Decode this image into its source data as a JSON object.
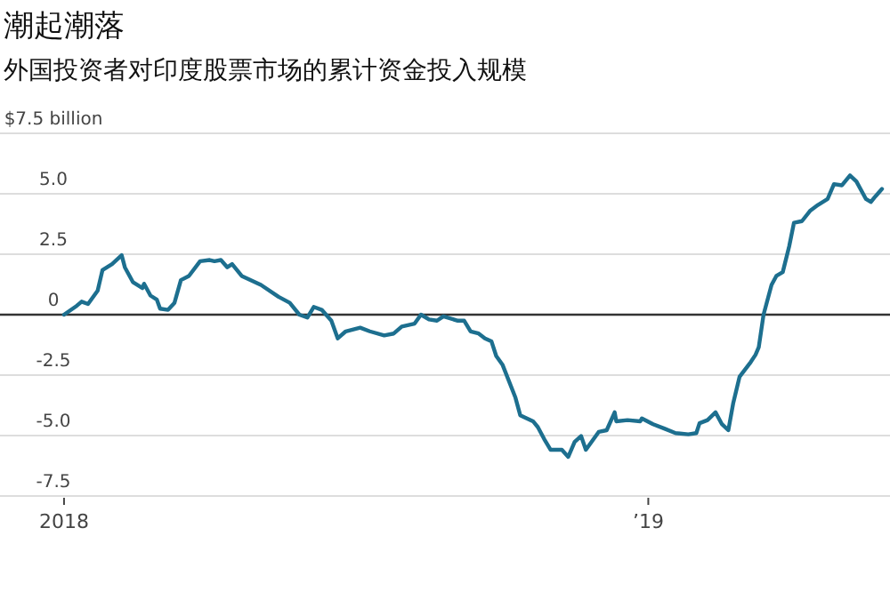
{
  "chart_data": {
    "type": "line",
    "title": "潮起潮落",
    "subtitle": "外国投资者对印度股票市场的累计资金投入规模",
    "x": [
      "2018-01-01",
      "2018-01-09",
      "2018-01-12",
      "2018-01-16",
      "2018-01-22",
      "2018-01-25",
      "2018-01-31",
      "2018-02-06",
      "2018-02-08",
      "2018-02-13",
      "2018-02-19",
      "2018-02-20",
      "2018-02-24",
      "2018-02-28",
      "2018-03-02",
      "2018-03-07",
      "2018-03-11",
      "2018-03-15",
      "2018-03-20",
      "2018-03-27",
      "2018-04-02",
      "2018-04-05",
      "2018-04-09",
      "2018-04-13",
      "2018-04-16",
      "2018-04-22",
      "2018-05-04",
      "2018-05-15",
      "2018-05-22",
      "2018-05-28",
      "2018-06-02",
      "2018-06-06",
      "2018-06-11",
      "2018-06-17",
      "2018-06-21",
      "2018-06-26",
      "2018-07-05",
      "2018-07-11",
      "2018-07-20",
      "2018-07-26",
      "2018-07-31",
      "2018-08-08",
      "2018-08-12",
      "2018-08-17",
      "2018-08-22",
      "2018-08-26",
      "2018-09-04",
      "2018-09-08",
      "2018-09-12",
      "2018-09-17",
      "2018-09-21",
      "2018-09-25",
      "2018-09-28",
      "2018-10-02",
      "2018-10-10",
      "2018-10-13",
      "2018-10-21",
      "2018-10-24",
      "2018-10-28",
      "2018-11-01",
      "2018-11-08",
      "2018-11-12",
      "2018-11-16",
      "2018-11-20",
      "2018-11-23",
      "2018-12-01",
      "2018-12-06",
      "2018-12-11",
      "2018-12-12",
      "2018-12-19",
      "2018-12-27",
      "2018-12-28",
      "2019-01-04",
      "2019-01-11",
      "2019-01-18",
      "2019-01-26",
      "2019-01-31",
      "2019-02-02",
      "2019-02-07",
      "2019-02-12",
      "2019-02-16",
      "2019-02-20",
      "2019-02-23",
      "2019-02-27",
      "2019-03-06",
      "2019-03-09",
      "2019-03-11",
      "2019-03-14",
      "2019-03-19",
      "2019-03-22",
      "2019-03-26",
      "2019-03-30",
      "2019-04-02",
      "2019-04-07",
      "2019-04-12",
      "2019-04-17",
      "2019-04-23",
      "2019-04-27",
      "2019-05-02",
      "2019-05-07",
      "2019-05-11",
      "2019-05-17",
      "2019-05-20",
      "2019-05-23",
      "2019-05-27"
    ],
    "series": [
      {
        "color": "#1d6f8f",
        "values": [
          0,
          0.37,
          0.54,
          0.44,
          0.99,
          1.84,
          2.09,
          2.46,
          1.96,
          1.35,
          1.1,
          1.28,
          0.79,
          0.62,
          0.25,
          0.2,
          0.49,
          1.43,
          1.6,
          2.21,
          2.26,
          2.21,
          2.26,
          1.96,
          2.09,
          1.6,
          1.23,
          0.74,
          0.49,
          0,
          -0.12,
          0.32,
          0.2,
          -0.25,
          -0.98,
          -0.69,
          -0.54,
          -0.69,
          -0.86,
          -0.78,
          -0.49,
          -0.37,
          0,
          -0.2,
          -0.25,
          -0.07,
          -0.25,
          -0.25,
          -0.69,
          -0.78,
          -0.98,
          -1.1,
          -1.71,
          -2.08,
          -3.43,
          -4.16,
          -4.41,
          -4.65,
          -5.15,
          -5.59,
          -5.59,
          -5.88,
          -5.26,
          -5.02,
          -5.59,
          -4.85,
          -4.78,
          -4.04,
          -4.41,
          -4.36,
          -4.41,
          -4.29,
          -4.53,
          -4.71,
          -4.9,
          -4.95,
          -4.9,
          -4.49,
          -4.36,
          -4.04,
          -4.53,
          -4.78,
          -3.68,
          -2.57,
          -1.96,
          -1.66,
          -1.35,
          0,
          1.23,
          1.6,
          1.76,
          2.82,
          3.8,
          3.87,
          4.29,
          4.54,
          4.78,
          5.4,
          5.35,
          5.76,
          5.51,
          4.78,
          4.66,
          4.9,
          5.2
        ]
      }
    ],
    "xlim": [
      "2017-11-22",
      "2019-06-01"
    ],
    "xticks": [
      {
        "value": "2018-01-01",
        "label": "2018"
      },
      {
        "value": "2019-01-01",
        "label": "’19"
      }
    ],
    "ylim": [
      -7.5,
      7.5
    ],
    "yticks": [
      {
        "value": -7.5,
        "label": "-7.5"
      },
      {
        "value": -5,
        "label": "-5.0"
      },
      {
        "value": -2.5,
        "label": "-2.5"
      },
      0,
      {
        "value": 2.5,
        "label": "2.5"
      },
      {
        "value": 5,
        "label": "5.0"
      },
      {
        "value": 7.5,
        "label": "$7.5 billion"
      }
    ],
    "grid": "y",
    "ref_lines": [
      {
        "axis": "y",
        "value": 0,
        "color": "#333333"
      }
    ]
  }
}
